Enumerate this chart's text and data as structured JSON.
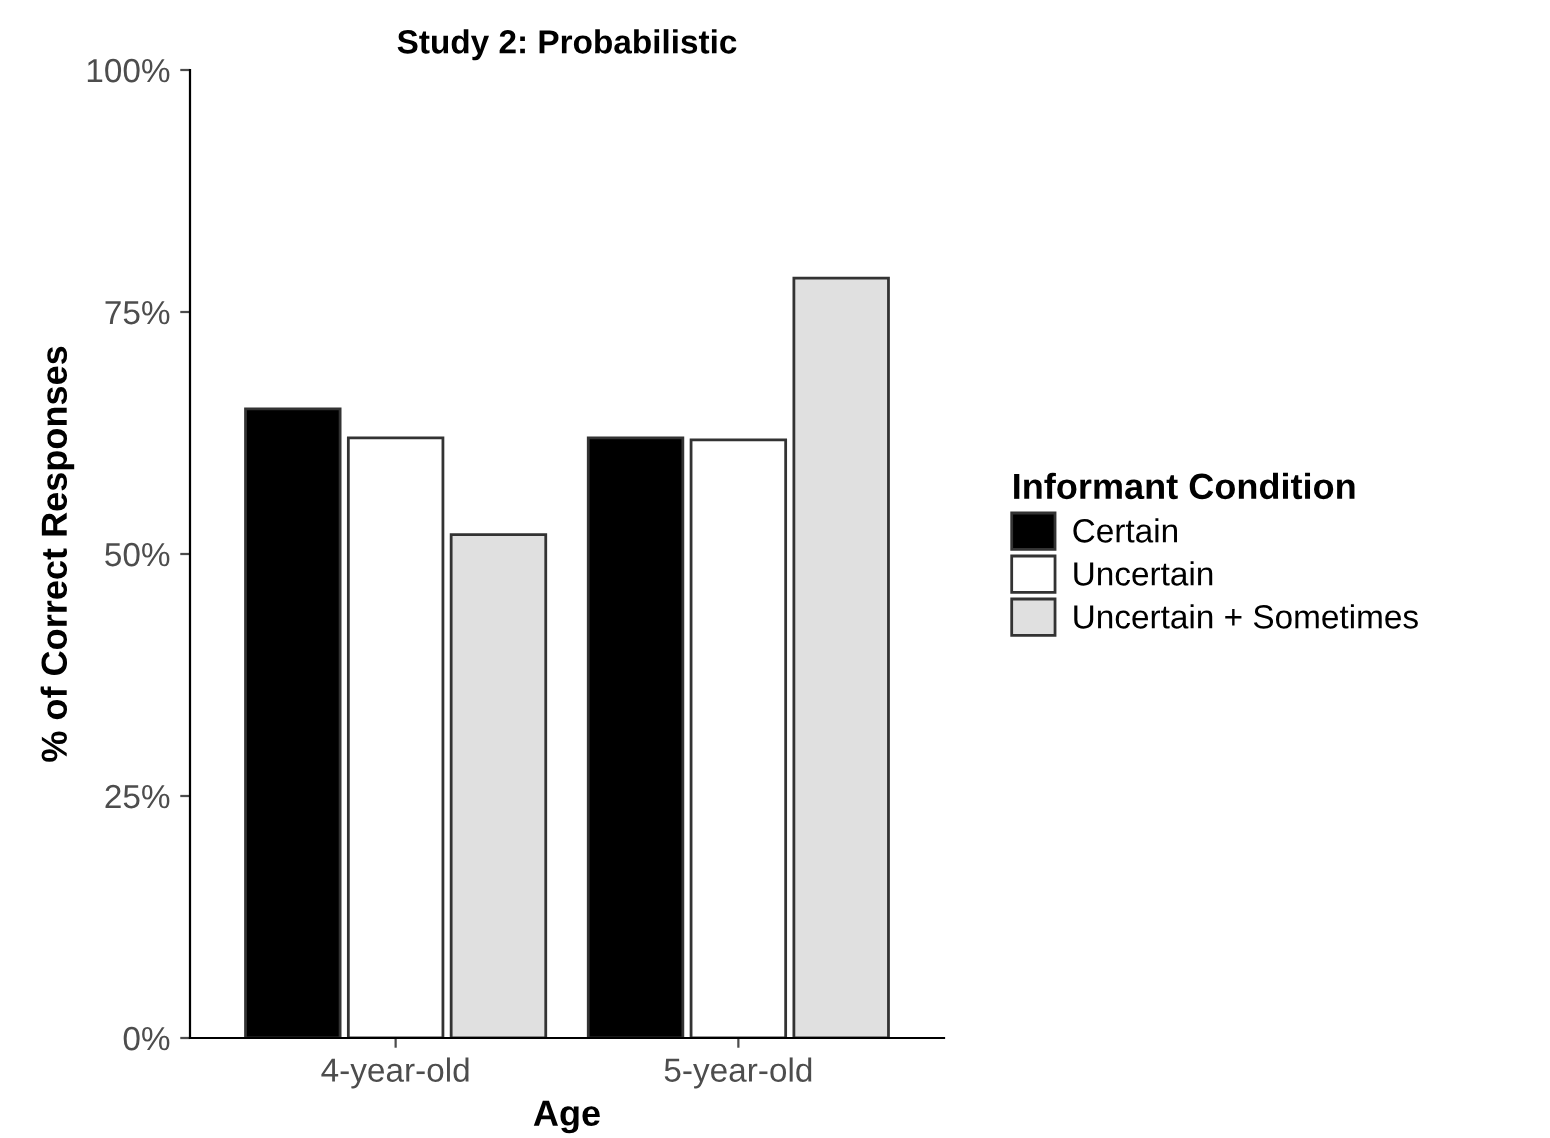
{
  "chart_data": {
    "type": "bar",
    "title": "Study 2: Probabilistic",
    "xlabel": "Age",
    "ylabel": "% of Correct Responses",
    "legend_title": "Informant Condition",
    "categories": [
      "4-year-old",
      "5-year-old"
    ],
    "series": [
      {
        "name": "Certain",
        "color": "#000000",
        "values": [
          65,
          62
        ]
      },
      {
        "name": "Uncertain",
        "color": "#ffffff",
        "values": [
          62,
          61.8
        ]
      },
      {
        "name": "Uncertain + Sometimes",
        "color": "#e0e0e0",
        "values": [
          52,
          78.5
        ]
      }
    ],
    "ylim": [
      0,
      100
    ],
    "yticks": [
      {
        "value": 0,
        "label": "0%"
      },
      {
        "value": 25,
        "label": "25%"
      },
      {
        "value": 50,
        "label": "50%"
      },
      {
        "value": 75,
        "label": "75%"
      },
      {
        "value": 100,
        "label": "100%"
      }
    ],
    "grid": false,
    "legend": "right"
  }
}
